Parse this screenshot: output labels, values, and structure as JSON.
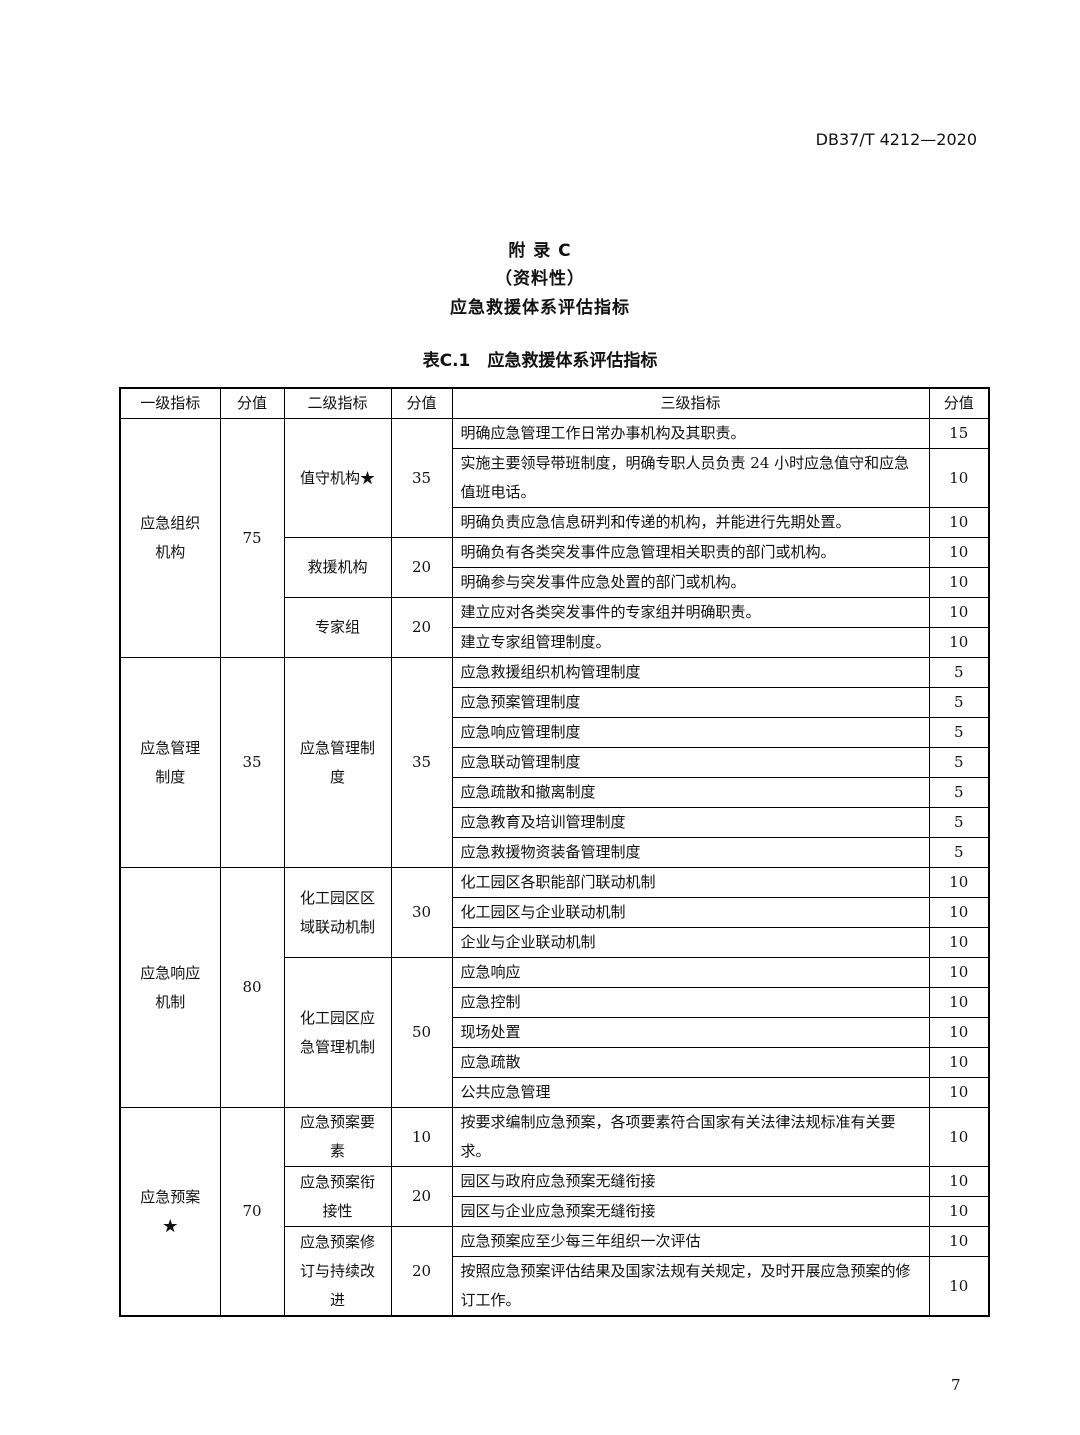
{
  "header": {
    "standard_no": "DB37/T 4212—2020"
  },
  "title": {
    "appendix": "附 录 C",
    "nature": "（资料性）",
    "name": "应急救援体系评估指标"
  },
  "table": {
    "caption": "表C.1　应急救援体系评估指标",
    "columns": [
      "一级指标",
      "分值",
      "二级指标",
      "分值",
      "三级指标",
      "分值"
    ],
    "groups": [
      {
        "name": "应急组织机构",
        "score": "75",
        "subs": [
          {
            "name": "值守机构★",
            "score": "35",
            "items": [
              {
                "text": "明确应急管理工作日常办事机构及其职责。",
                "score": "15"
              },
              {
                "text": "实施主要领导带班制度，明确专职人员负责 24 小时应急值守和应急值班电话。",
                "score": "10"
              },
              {
                "text": "明确负责应急信息研判和传递的机构，并能进行先期处置。",
                "score": "10"
              }
            ]
          },
          {
            "name": "救援机构",
            "score": "20",
            "items": [
              {
                "text": "明确负有各类突发事件应急管理相关职责的部门或机构。",
                "score": "10"
              },
              {
                "text": "明确参与突发事件应急处置的部门或机构。",
                "score": "10"
              }
            ]
          },
          {
            "name": "专家组",
            "score": "20",
            "items": [
              {
                "text": "建立应对各类突发事件的专家组并明确职责。",
                "score": "10"
              },
              {
                "text": "建立专家组管理制度。",
                "score": "10"
              }
            ]
          }
        ]
      },
      {
        "name": "应急管理制度",
        "score": "35",
        "subs": [
          {
            "name": "应急管理制度",
            "score": "35",
            "items": [
              {
                "text": "应急救援组织机构管理制度",
                "score": "5"
              },
              {
                "text": "应急预案管理制度",
                "score": "5"
              },
              {
                "text": "应急响应管理制度",
                "score": "5"
              },
              {
                "text": "应急联动管理制度",
                "score": "5"
              },
              {
                "text": "应急疏散和撤离制度",
                "score": "5"
              },
              {
                "text": "应急教育及培训管理制度",
                "score": "5"
              },
              {
                "text": "应急救援物资装备管理制度",
                "score": "5"
              }
            ]
          }
        ]
      },
      {
        "name": "应急响应机制",
        "score": "80",
        "subs": [
          {
            "name": "化工园区区域联动机制",
            "score": "30",
            "items": [
              {
                "text": "化工园区各职能部门联动机制",
                "score": "10"
              },
              {
                "text": "化工园区与企业联动机制",
                "score": "10"
              },
              {
                "text": "企业与企业联动机制",
                "score": "10"
              }
            ]
          },
          {
            "name": "化工园区应急管理机制",
            "score": "50",
            "items": [
              {
                "text": "应急响应",
                "score": "10"
              },
              {
                "text": "应急控制",
                "score": "10"
              },
              {
                "text": "现场处置",
                "score": "10"
              },
              {
                "text": "应急疏散",
                "score": "10"
              },
              {
                "text": "公共应急管理",
                "score": "10"
              }
            ]
          }
        ]
      },
      {
        "name": "应急预案★",
        "score": "70",
        "subs": [
          {
            "name": "应急预案要素",
            "score": "10",
            "items": [
              {
                "text": "按要求编制应急预案，各项要素符合国家有关法律法规标准有关要求。",
                "score": "10"
              }
            ]
          },
          {
            "name": "应急预案衔接性",
            "score": "20",
            "items": [
              {
                "text": "园区与政府应急预案无缝衔接",
                "score": "10"
              },
              {
                "text": "园区与企业应急预案无缝衔接",
                "score": "10"
              }
            ]
          },
          {
            "name": "应急预案修订与持续改进",
            "score": "20",
            "items": [
              {
                "text": "应急预案应至少每三年组织一次评估",
                "score": "10"
              },
              {
                "text": "按照应急预案评估结果及国家法规有关规定，及时开展应急预案的修订工作。",
                "score": "10"
              }
            ]
          }
        ]
      }
    ]
  },
  "footer": {
    "page_number": "7"
  }
}
